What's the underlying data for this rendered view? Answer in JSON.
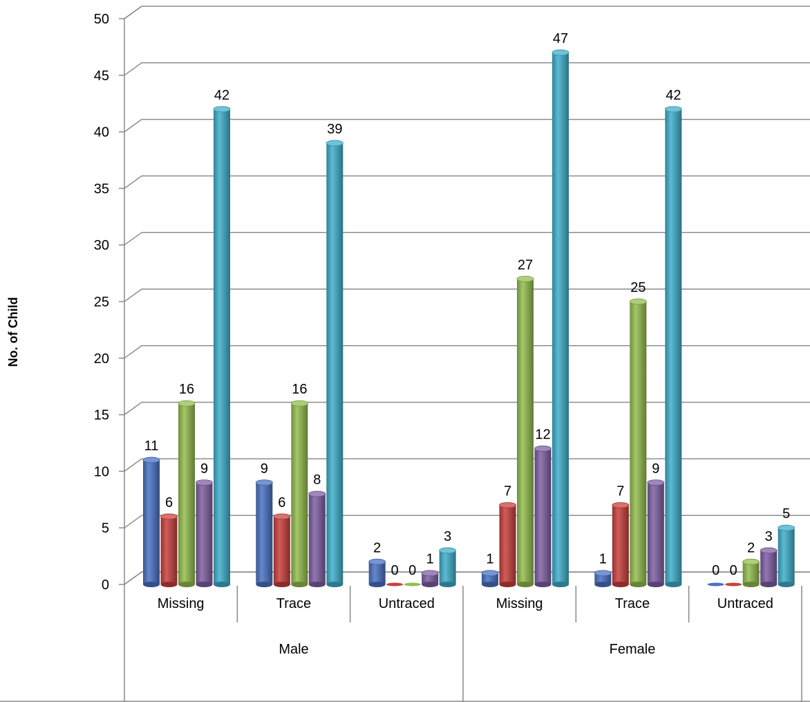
{
  "chart_data": {
    "type": "bar",
    "title": "",
    "ylabel": "No. of Child",
    "xlabel": "",
    "ylim": [
      0,
      50
    ],
    "yticks": [
      0,
      5,
      10,
      15,
      20,
      25,
      30,
      35,
      40,
      45,
      50
    ],
    "grid": true,
    "groups": [
      {
        "label": "Male",
        "categories": [
          "Missing",
          "Trace",
          "Untraced"
        ]
      },
      {
        "label": "Female",
        "categories": [
          "Missing",
          "Trace",
          "Untraced"
        ]
      }
    ],
    "categories": [
      "Missing",
      "Trace",
      "Untraced",
      "Missing",
      "Trace",
      "Untraced"
    ],
    "series": [
      {
        "color": "#4A72C4",
        "values": [
          11,
          9,
          2,
          1,
          1,
          0
        ]
      },
      {
        "color": "#C9403D",
        "values": [
          6,
          6,
          0,
          7,
          7,
          0
        ]
      },
      {
        "color": "#94BD4E",
        "values": [
          16,
          16,
          0,
          27,
          25,
          2
        ]
      },
      {
        "color": "#7F5FA3",
        "values": [
          9,
          8,
          1,
          12,
          9,
          3
        ]
      },
      {
        "color": "#3FAFCB",
        "values": [
          42,
          39,
          3,
          47,
          42,
          5
        ]
      }
    ]
  }
}
